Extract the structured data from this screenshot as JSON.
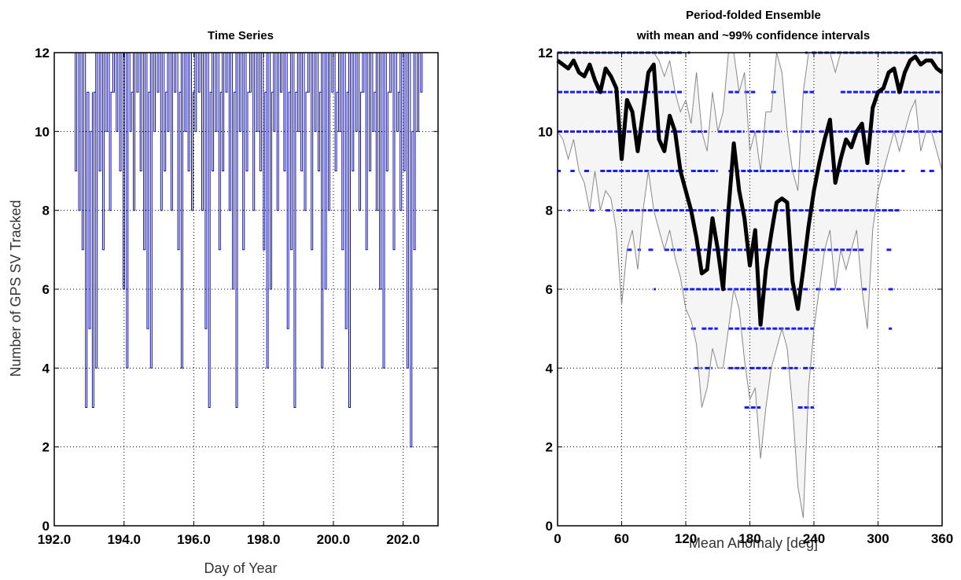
{
  "chart_data": [
    {
      "type": "line",
      "title": "Time Series",
      "xlabel": "Day of Year",
      "ylabel": "Number of GPS SV Tracked",
      "xlim": [
        192.0,
        203.0
      ],
      "ylim": [
        0,
        12
      ],
      "xticks": [
        "192.0",
        "194.0",
        "196.0",
        "198.0",
        "200.0",
        "202.0"
      ],
      "yticks": [
        "0",
        "2",
        "4",
        "6",
        "8",
        "10",
        "12"
      ],
      "grid": true,
      "series_color": "#1010b0",
      "series": [
        {
          "x_range": [
            192.6,
            202.5
          ],
          "values_min": [
            9,
            8,
            7,
            3,
            5,
            3,
            4,
            9,
            7,
            10,
            8,
            11,
            10,
            9,
            6,
            4,
            10,
            8,
            11,
            9,
            7,
            5,
            4,
            10,
            11,
            8,
            9,
            10,
            8,
            11,
            7,
            4,
            10,
            9,
            8,
            10,
            11,
            8,
            5,
            3,
            9,
            10,
            7,
            9,
            11,
            8,
            6,
            3,
            10,
            7,
            9,
            11,
            8,
            10,
            9,
            7,
            4,
            6,
            10,
            8,
            11,
            9,
            5,
            7,
            3,
            10,
            9,
            8,
            11,
            7,
            10,
            9,
            4,
            6,
            8,
            11,
            9,
            10,
            7,
            5,
            3,
            9,
            10,
            8,
            11,
            7,
            9,
            10,
            8,
            6,
            4,
            9,
            11,
            7,
            10,
            8,
            9,
            4,
            2,
            7,
            10,
            11
          ],
          "values_max": [
            12,
            12,
            12,
            11,
            10,
            11,
            12,
            12,
            12,
            12,
            11,
            12,
            12,
            12,
            12,
            12,
            11,
            12,
            12,
            12,
            12,
            11,
            12,
            12,
            12,
            12,
            11,
            12,
            12,
            12,
            11,
            12,
            12,
            12,
            11,
            12,
            12,
            12,
            12,
            11,
            12,
            12,
            11,
            12,
            12,
            12,
            11,
            12,
            12,
            12,
            11,
            12,
            12,
            12,
            12,
            11,
            12,
            11,
            12,
            12,
            12,
            12,
            11,
            12,
            11,
            12,
            12,
            11,
            12,
            12,
            12,
            11,
            12,
            12,
            12,
            12,
            11,
            12,
            12,
            11,
            12,
            12,
            12,
            11,
            12,
            12,
            12,
            11,
            12,
            12,
            12,
            11,
            12,
            12,
            11,
            12,
            12,
            12,
            10,
            12,
            12,
            12
          ]
        }
      ]
    },
    {
      "type": "line",
      "title": "Period-folded Ensemble",
      "subtitle": "with mean and ~99% confidence intervals",
      "xlabel": "Mean Anomaly [deg]",
      "ylabel": "",
      "xlim": [
        0,
        360
      ],
      "ylim": [
        0,
        12
      ],
      "xticks": [
        "0",
        "60",
        "120",
        "180",
        "240",
        "300",
        "360"
      ],
      "yticks": [
        "0",
        "2",
        "4",
        "6",
        "8",
        "10",
        "12"
      ],
      "grid": true,
      "mean_color": "#000000",
      "ci_color": "#888888",
      "band_color": "#f5f5f5",
      "dot_color": "#1a1aff",
      "x": [
        0,
        5,
        10,
        15,
        20,
        25,
        30,
        35,
        40,
        45,
        50,
        55,
        60,
        65,
        70,
        75,
        80,
        85,
        90,
        95,
        100,
        105,
        110,
        115,
        120,
        125,
        130,
        135,
        140,
        145,
        150,
        155,
        160,
        165,
        170,
        175,
        180,
        185,
        190,
        195,
        200,
        205,
        210,
        215,
        220,
        225,
        230,
        235,
        240,
        245,
        250,
        255,
        260,
        265,
        270,
        275,
        280,
        285,
        290,
        295,
        300,
        305,
        310,
        315,
        320,
        325,
        330,
        335,
        340,
        345,
        350,
        355,
        360
      ],
      "series": [
        {
          "name": "",
          "role": "mean",
          "values": [
            11.8,
            11.7,
            11.6,
            11.8,
            11.5,
            11.4,
            11.7,
            11.3,
            11.0,
            11.6,
            11.4,
            11.1,
            9.3,
            10.8,
            10.5,
            9.5,
            10.5,
            11.5,
            11.7,
            9.8,
            9.5,
            10.4,
            10.0,
            9.0,
            8.5,
            8.0,
            7.3,
            6.4,
            6.5,
            7.8,
            7.0,
            6.0,
            8.0,
            9.7,
            8.5,
            7.8,
            6.6,
            7.5,
            5.1,
            6.5,
            7.4,
            8.2,
            8.3,
            8.2,
            6.2,
            5.5,
            6.5,
            7.6,
            8.5,
            9.2,
            9.8,
            10.3,
            8.7,
            9.3,
            9.8,
            9.6,
            10.0,
            10.2,
            9.2,
            10.6,
            11.0,
            11.1,
            11.5,
            11.6,
            11.0,
            11.5,
            11.8,
            11.9,
            11.7,
            11.8,
            11.8,
            11.6,
            11.5
          ]
        },
        {
          "name": "",
          "role": "upper_ci",
          "values": [
            12.0,
            12.0,
            12.0,
            12.0,
            12.0,
            12.0,
            12.0,
            12.0,
            12.0,
            12.0,
            12.0,
            12.0,
            12.0,
            12.0,
            12.0,
            12.0,
            12.0,
            12.0,
            12.0,
            11.8,
            11.4,
            11.8,
            11.0,
            10.5,
            10.8,
            10.2,
            11.5,
            10.0,
            9.5,
            11.0,
            10.0,
            10.5,
            12.0,
            12.0,
            11.0,
            11.5,
            9.5,
            10.0,
            9.0,
            10.5,
            10.5,
            12.0,
            11.5,
            10.0,
            9.0,
            8.5,
            11.0,
            12.0,
            12.0,
            12.0,
            12.0,
            12.0,
            11.5,
            12.0,
            12.0,
            12.0,
            12.0,
            12.0,
            12.0,
            12.0,
            12.0,
            12.0,
            12.0,
            12.0,
            12.0,
            12.0,
            12.0,
            12.0,
            12.0,
            12.0,
            12.0,
            12.0,
            12.0
          ]
        },
        {
          "name": "",
          "role": "lower_ci",
          "values": [
            10.0,
            9.8,
            9.3,
            9.8,
            9.0,
            8.7,
            8.0,
            9.0,
            8.0,
            8.5,
            8.3,
            7.5,
            5.6,
            7.0,
            7.5,
            6.5,
            8.0,
            9.0,
            8.0,
            7.5,
            7.0,
            7.5,
            6.8,
            6.3,
            5.5,
            5.2,
            4.6,
            3.0,
            3.5,
            4.5,
            4.0,
            4.0,
            5.0,
            6.0,
            5.5,
            4.2,
            3.2,
            3.5,
            1.7,
            3.0,
            4.0,
            4.5,
            5.0,
            4.5,
            3.0,
            1.0,
            0.2,
            3.5,
            5.0,
            6.0,
            7.0,
            7.5,
            6.0,
            7.0,
            6.5,
            7.0,
            7.5,
            6.0,
            5.0,
            7.5,
            8.5,
            9.0,
            9.5,
            10.0,
            9.5,
            10.0,
            10.5,
            10.8,
            9.5,
            10.0,
            10.0,
            9.5,
            9.0
          ]
        }
      ],
      "dot_levels": [
        {
          "y": 12,
          "segments": [
            [
              0,
              118
            ],
            [
              122,
              124
            ],
            [
              232,
              234
            ],
            [
              238,
              360
            ]
          ]
        },
        {
          "y": 11,
          "segments": [
            [
              0,
              118
            ],
            [
              160,
              170
            ],
            [
              175,
              185
            ],
            [
              200,
              205
            ],
            [
              230,
              240
            ],
            [
              265,
              360
            ]
          ]
        },
        {
          "y": 10,
          "segments": [
            [
              0,
              118
            ],
            [
              125,
              140
            ],
            [
              150,
              175
            ],
            [
              180,
              210
            ],
            [
              220,
              240
            ],
            [
              245,
              360
            ]
          ]
        },
        {
          "y": 9,
          "segments": [
            [
              0,
              3
            ],
            [
              12,
              16
            ],
            [
              25,
              31
            ],
            [
              40,
              118
            ],
            [
              125,
              150
            ],
            [
              160,
              240
            ],
            [
              250,
              320
            ],
            [
              322,
              325
            ],
            [
              340,
              344
            ],
            [
              348,
              354
            ]
          ]
        },
        {
          "y": 8,
          "segments": [
            [
              10,
              12
            ],
            [
              30,
              35
            ],
            [
              45,
              50
            ],
            [
              55,
              150
            ],
            [
              155,
              240
            ],
            [
              245,
              320
            ]
          ]
        },
        {
          "y": 7,
          "segments": [
            [
              65,
              70
            ],
            [
              75,
              78
            ],
            [
              85,
              90
            ],
            [
              100,
              118
            ],
            [
              125,
              140
            ],
            [
              145,
              230
            ],
            [
              235,
              288
            ],
            [
              308,
              313
            ]
          ]
        },
        {
          "y": 6,
          "segments": [
            [
              90,
              92
            ],
            [
              118,
              235
            ],
            [
              242,
              248
            ],
            [
              255,
              265
            ],
            [
              285,
              290
            ],
            [
              310,
              314
            ]
          ]
        },
        {
          "y": 5,
          "segments": [
            [
              125,
              130
            ],
            [
              135,
              150
            ],
            [
              160,
              240
            ],
            [
              310,
              313
            ]
          ]
        },
        {
          "y": 4,
          "segments": [
            [
              128,
              135
            ],
            [
              138,
              145
            ],
            [
              160,
              175
            ],
            [
              180,
              200
            ],
            [
              210,
              225
            ],
            [
              230,
              240
            ]
          ]
        },
        {
          "y": 3,
          "segments": [
            [
              175,
              190
            ],
            [
              225,
              240
            ]
          ]
        }
      ]
    }
  ]
}
